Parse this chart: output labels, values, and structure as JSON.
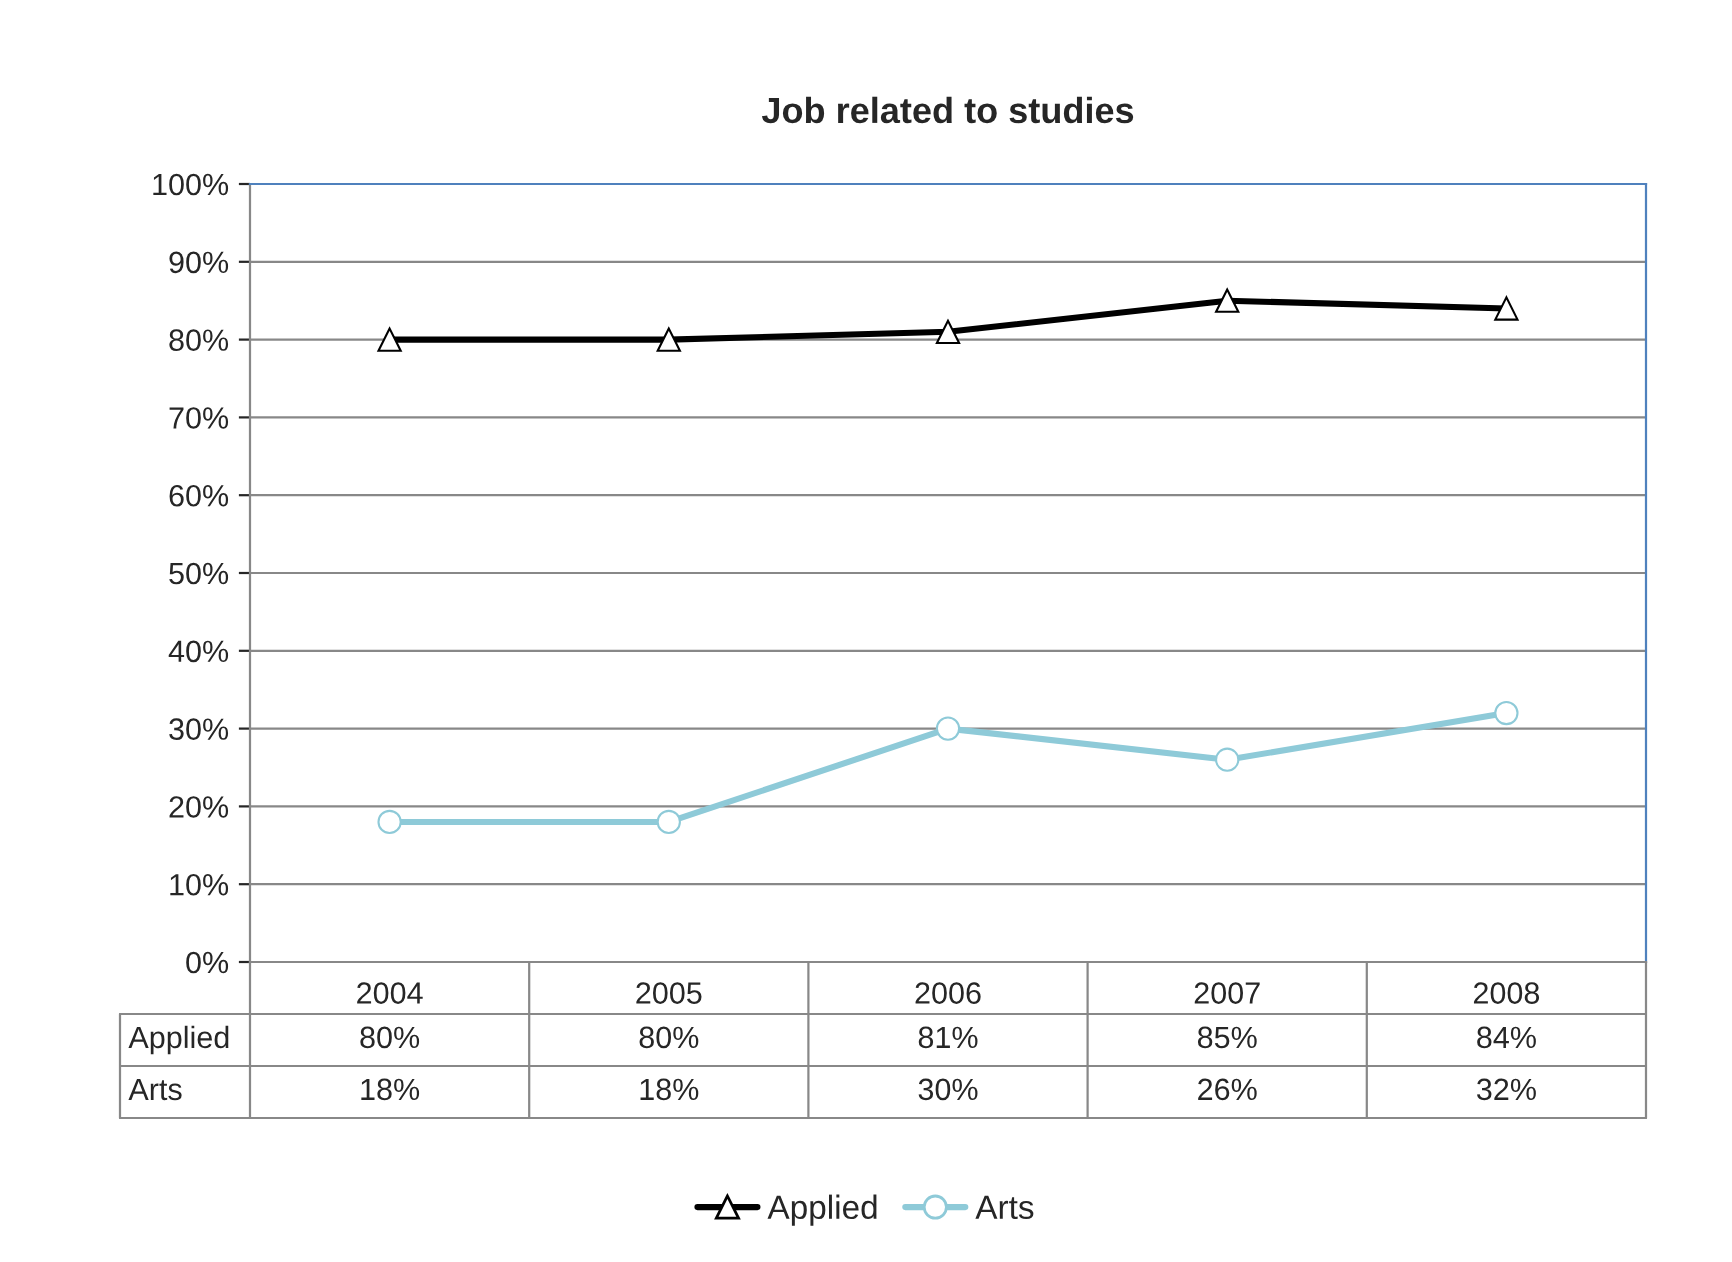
{
  "chart_data": {
    "type": "line",
    "title": "Job related to studies",
    "categories": [
      "2004",
      "2005",
      "2006",
      "2007",
      "2008"
    ],
    "series": [
      {
        "name": "Applied",
        "color": "#000000",
        "marker": "triangle",
        "values": [
          80,
          80,
          81,
          85,
          84
        ],
        "value_labels": [
          "80%",
          "80%",
          "81%",
          "85%",
          "84%"
        ]
      },
      {
        "name": "Arts",
        "color": "#8ecad8",
        "marker": "circle",
        "values": [
          18,
          18,
          30,
          26,
          32
        ],
        "value_labels": [
          "18%",
          "18%",
          "30%",
          "26%",
          "32%"
        ]
      }
    ],
    "ylim": [
      0,
      100
    ],
    "yticks": [
      {
        "value": 0,
        "label": "0%"
      },
      {
        "value": 10,
        "label": "10%"
      },
      {
        "value": 20,
        "label": "20%"
      },
      {
        "value": 30,
        "label": "30%"
      },
      {
        "value": 40,
        "label": "40%"
      },
      {
        "value": 50,
        "label": "50%"
      },
      {
        "value": 60,
        "label": "60%"
      },
      {
        "value": 70,
        "label": "70%"
      },
      {
        "value": 80,
        "label": "80%"
      },
      {
        "value": 90,
        "label": "90%"
      },
      {
        "value": 100,
        "label": "100%"
      }
    ],
    "grid": "y",
    "legend": "bottom"
  }
}
